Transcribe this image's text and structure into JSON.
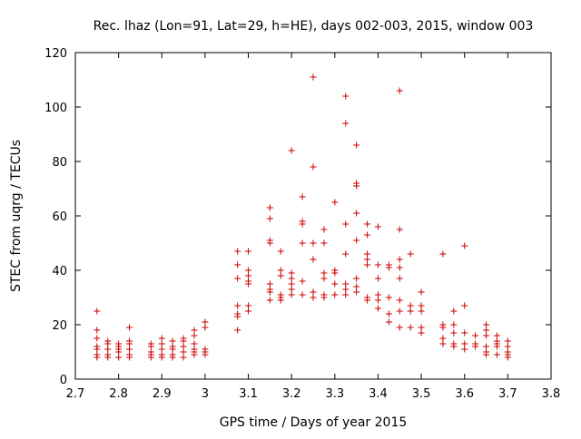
{
  "chart_data": {
    "type": "scatter",
    "title": "Rec. lhaz (Lon=91, Lat=29, h=HE), days 002-003, 2015, window 003",
    "xlabel": "GPS time / Days of year 2015",
    "ylabel": "STEC from uqrg / TECUs",
    "xlim": [
      2.7,
      3.8
    ],
    "ylim": [
      0,
      120
    ],
    "xticks": [
      2.7,
      2.8,
      2.9,
      3.0,
      3.1,
      3.2,
      3.3,
      3.4,
      3.5,
      3.6,
      3.7,
      3.8
    ],
    "xtick_labels": [
      "2.7",
      "2.8",
      "2.9",
      "3",
      "3.1",
      "3.2",
      "3.3",
      "3.4",
      "3.5",
      "3.6",
      "3.7",
      "3.8"
    ],
    "yticks": [
      0,
      20,
      40,
      60,
      80,
      100,
      120
    ],
    "ytick_labels": [
      "0",
      "20",
      "40",
      "60",
      "80",
      "100",
      "120"
    ],
    "marker": "+",
    "color": "#cc0000",
    "grid": false,
    "series": [
      {
        "name": "STEC",
        "points": [
          [
            2.75,
            25
          ],
          [
            2.75,
            18
          ],
          [
            2.75,
            15
          ],
          [
            2.75,
            12
          ],
          [
            2.75,
            11
          ],
          [
            2.75,
            9
          ],
          [
            2.75,
            8
          ],
          [
            2.775,
            14
          ],
          [
            2.775,
            13
          ],
          [
            2.775,
            11
          ],
          [
            2.775,
            9
          ],
          [
            2.775,
            8
          ],
          [
            2.8,
            13
          ],
          [
            2.8,
            12
          ],
          [
            2.8,
            11
          ],
          [
            2.8,
            10
          ],
          [
            2.8,
            8
          ],
          [
            2.825,
            19
          ],
          [
            2.825,
            14
          ],
          [
            2.825,
            13
          ],
          [
            2.825,
            11
          ],
          [
            2.825,
            9
          ],
          [
            2.825,
            8
          ],
          [
            2.875,
            13
          ],
          [
            2.875,
            12
          ],
          [
            2.875,
            10
          ],
          [
            2.875,
            9
          ],
          [
            2.875,
            8
          ],
          [
            2.9,
            15
          ],
          [
            2.9,
            13
          ],
          [
            2.9,
            11
          ],
          [
            2.9,
            9
          ],
          [
            2.9,
            8
          ],
          [
            2.925,
            14
          ],
          [
            2.925,
            12
          ],
          [
            2.925,
            11
          ],
          [
            2.925,
            9
          ],
          [
            2.925,
            8
          ],
          [
            2.95,
            15
          ],
          [
            2.95,
            14
          ],
          [
            2.95,
            12
          ],
          [
            2.95,
            10
          ],
          [
            2.95,
            8
          ],
          [
            2.975,
            18
          ],
          [
            2.975,
            16
          ],
          [
            2.975,
            13
          ],
          [
            2.975,
            11
          ],
          [
            2.975,
            10
          ],
          [
            2.975,
            9
          ],
          [
            3.0,
            21
          ],
          [
            3.0,
            19
          ],
          [
            3.0,
            11
          ],
          [
            3.0,
            10
          ],
          [
            3.0,
            9
          ],
          [
            3.075,
            47
          ],
          [
            3.075,
            42
          ],
          [
            3.075,
            37
          ],
          [
            3.075,
            27
          ],
          [
            3.075,
            24
          ],
          [
            3.075,
            23
          ],
          [
            3.075,
            18
          ],
          [
            3.1,
            47
          ],
          [
            3.1,
            40
          ],
          [
            3.1,
            38
          ],
          [
            3.1,
            36
          ],
          [
            3.1,
            35
          ],
          [
            3.1,
            27
          ],
          [
            3.1,
            25
          ],
          [
            3.15,
            63
          ],
          [
            3.15,
            59
          ],
          [
            3.15,
            51
          ],
          [
            3.15,
            50
          ],
          [
            3.15,
            35
          ],
          [
            3.15,
            33
          ],
          [
            3.15,
            32
          ],
          [
            3.15,
            29
          ],
          [
            3.175,
            47
          ],
          [
            3.175,
            40
          ],
          [
            3.175,
            38
          ],
          [
            3.175,
            31
          ],
          [
            3.175,
            30
          ],
          [
            3.175,
            29
          ],
          [
            3.2,
            84
          ],
          [
            3.2,
            39
          ],
          [
            3.2,
            37
          ],
          [
            3.2,
            35
          ],
          [
            3.2,
            33
          ],
          [
            3.2,
            31
          ],
          [
            3.225,
            67
          ],
          [
            3.225,
            58
          ],
          [
            3.225,
            57
          ],
          [
            3.225,
            50
          ],
          [
            3.225,
            36
          ],
          [
            3.225,
            31
          ],
          [
            3.25,
            111
          ],
          [
            3.25,
            78
          ],
          [
            3.25,
            50
          ],
          [
            3.25,
            44
          ],
          [
            3.25,
            32
          ],
          [
            3.25,
            30
          ],
          [
            3.275,
            55
          ],
          [
            3.275,
            50
          ],
          [
            3.275,
            39
          ],
          [
            3.275,
            37
          ],
          [
            3.275,
            31
          ],
          [
            3.275,
            30
          ],
          [
            3.3,
            65
          ],
          [
            3.3,
            40
          ],
          [
            3.3,
            39
          ],
          [
            3.3,
            35
          ],
          [
            3.3,
            31
          ],
          [
            3.325,
            104
          ],
          [
            3.325,
            94
          ],
          [
            3.325,
            57
          ],
          [
            3.325,
            46
          ],
          [
            3.325,
            35
          ],
          [
            3.325,
            33
          ],
          [
            3.325,
            31
          ],
          [
            3.35,
            86
          ],
          [
            3.35,
            72
          ],
          [
            3.35,
            71
          ],
          [
            3.35,
            61
          ],
          [
            3.35,
            51
          ],
          [
            3.35,
            37
          ],
          [
            3.35,
            34
          ],
          [
            3.35,
            32
          ],
          [
            3.375,
            57
          ],
          [
            3.375,
            53
          ],
          [
            3.375,
            46
          ],
          [
            3.375,
            44
          ],
          [
            3.375,
            42
          ],
          [
            3.375,
            30
          ],
          [
            3.375,
            29
          ],
          [
            3.4,
            56
          ],
          [
            3.4,
            42
          ],
          [
            3.4,
            37
          ],
          [
            3.4,
            31
          ],
          [
            3.4,
            29
          ],
          [
            3.4,
            26
          ],
          [
            3.425,
            42
          ],
          [
            3.425,
            41
          ],
          [
            3.425,
            30
          ],
          [
            3.425,
            24
          ],
          [
            3.425,
            21
          ],
          [
            3.45,
            106
          ],
          [
            3.45,
            55
          ],
          [
            3.45,
            44
          ],
          [
            3.45,
            41
          ],
          [
            3.45,
            37
          ],
          [
            3.45,
            29
          ],
          [
            3.45,
            25
          ],
          [
            3.45,
            19
          ],
          [
            3.475,
            46
          ],
          [
            3.475,
            27
          ],
          [
            3.475,
            25
          ],
          [
            3.475,
            19
          ],
          [
            3.5,
            32
          ],
          [
            3.5,
            27
          ],
          [
            3.5,
            25
          ],
          [
            3.5,
            19
          ],
          [
            3.5,
            17
          ],
          [
            3.55,
            46
          ],
          [
            3.55,
            20
          ],
          [
            3.55,
            19
          ],
          [
            3.55,
            15
          ],
          [
            3.55,
            13
          ],
          [
            3.575,
            25
          ],
          [
            3.575,
            20
          ],
          [
            3.575,
            17
          ],
          [
            3.575,
            13
          ],
          [
            3.575,
            12
          ],
          [
            3.6,
            49
          ],
          [
            3.6,
            27
          ],
          [
            3.6,
            17
          ],
          [
            3.6,
            13
          ],
          [
            3.6,
            11
          ],
          [
            3.625,
            16
          ],
          [
            3.625,
            13
          ],
          [
            3.625,
            12
          ],
          [
            3.65,
            20
          ],
          [
            3.65,
            18
          ],
          [
            3.65,
            16
          ],
          [
            3.65,
            12
          ],
          [
            3.65,
            10
          ],
          [
            3.65,
            9
          ],
          [
            3.675,
            16
          ],
          [
            3.675,
            14
          ],
          [
            3.675,
            13
          ],
          [
            3.675,
            12
          ],
          [
            3.675,
            9
          ],
          [
            3.7,
            14
          ],
          [
            3.7,
            12
          ],
          [
            3.7,
            10
          ],
          [
            3.7,
            9
          ],
          [
            3.7,
            8
          ]
        ]
      }
    ]
  }
}
